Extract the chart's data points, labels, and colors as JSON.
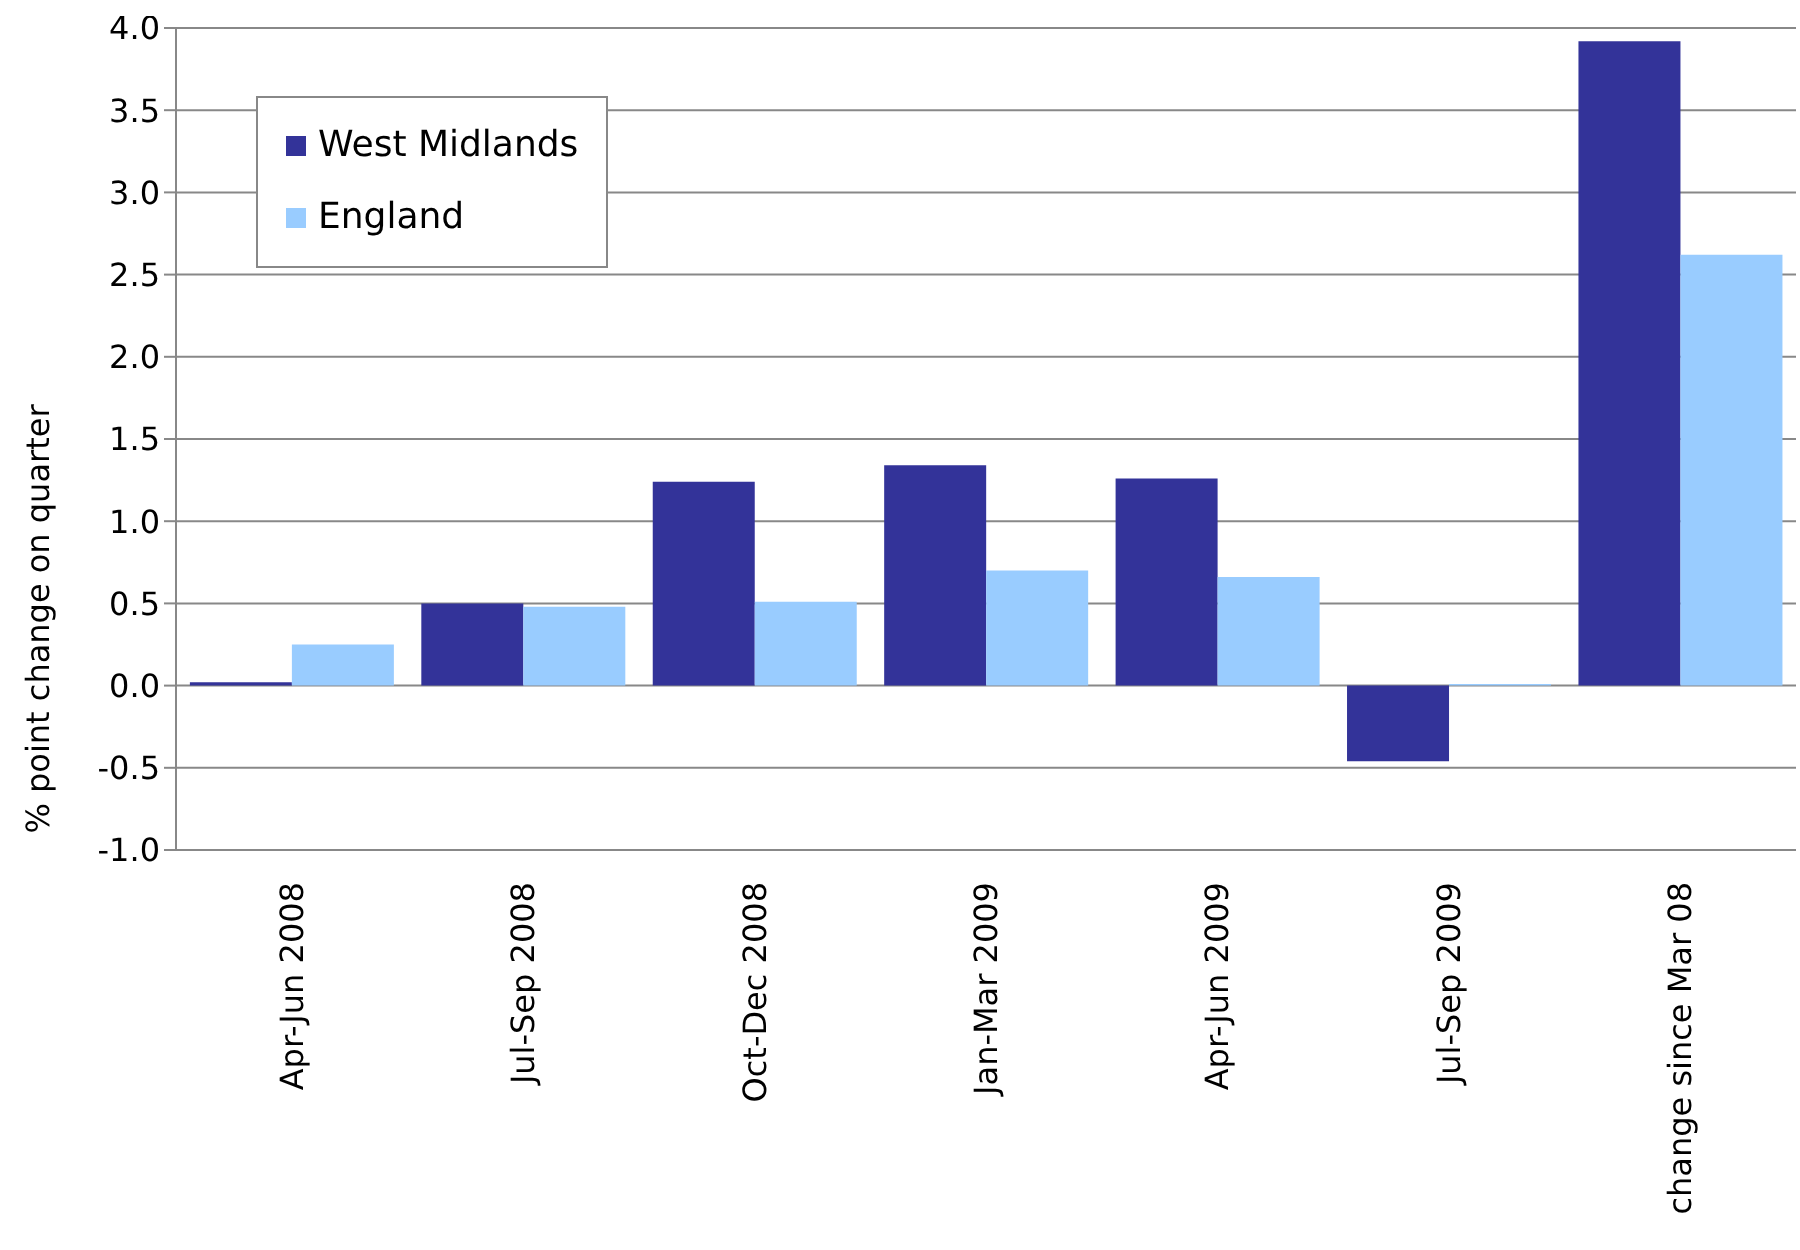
{
  "chart_data": {
    "type": "bar",
    "ylabel": "% point change on quarter",
    "categories": [
      "Apr-Jun 2008",
      "Jul-Sep 2008",
      "Oct-Dec 2008",
      "Jan-Mar 2009",
      "Apr-Jun 2009",
      "Jul-Sep 2009",
      "change since Mar 08"
    ],
    "series": [
      {
        "name": "West Midlands",
        "color": "#333399",
        "values": [
          0.02,
          0.5,
          1.24,
          1.34,
          1.26,
          -0.46,
          3.92
        ]
      },
      {
        "name": "England",
        "color": "#99ccff",
        "values": [
          0.25,
          0.48,
          0.51,
          0.7,
          0.66,
          0.01,
          2.62
        ]
      }
    ],
    "ylim": [
      -1,
      4
    ],
    "yticks": [
      {
        "value": -1,
        "label": "-1.0"
      },
      {
        "value": -0.5,
        "label": "-0.5"
      },
      {
        "value": 0,
        "label": "0.0"
      },
      {
        "value": 0.5,
        "label": "0.5"
      },
      {
        "value": 1,
        "label": "1.0"
      },
      {
        "value": 1.5,
        "label": "1.5"
      },
      {
        "value": 2,
        "label": "2.0"
      },
      {
        "value": 2.5,
        "label": "2.5"
      },
      {
        "value": 3,
        "label": "3.0"
      },
      {
        "value": 3.5,
        "label": "3.5"
      },
      {
        "value": 4,
        "label": "4.0"
      }
    ],
    "grid": "y",
    "legend": "top left"
  }
}
